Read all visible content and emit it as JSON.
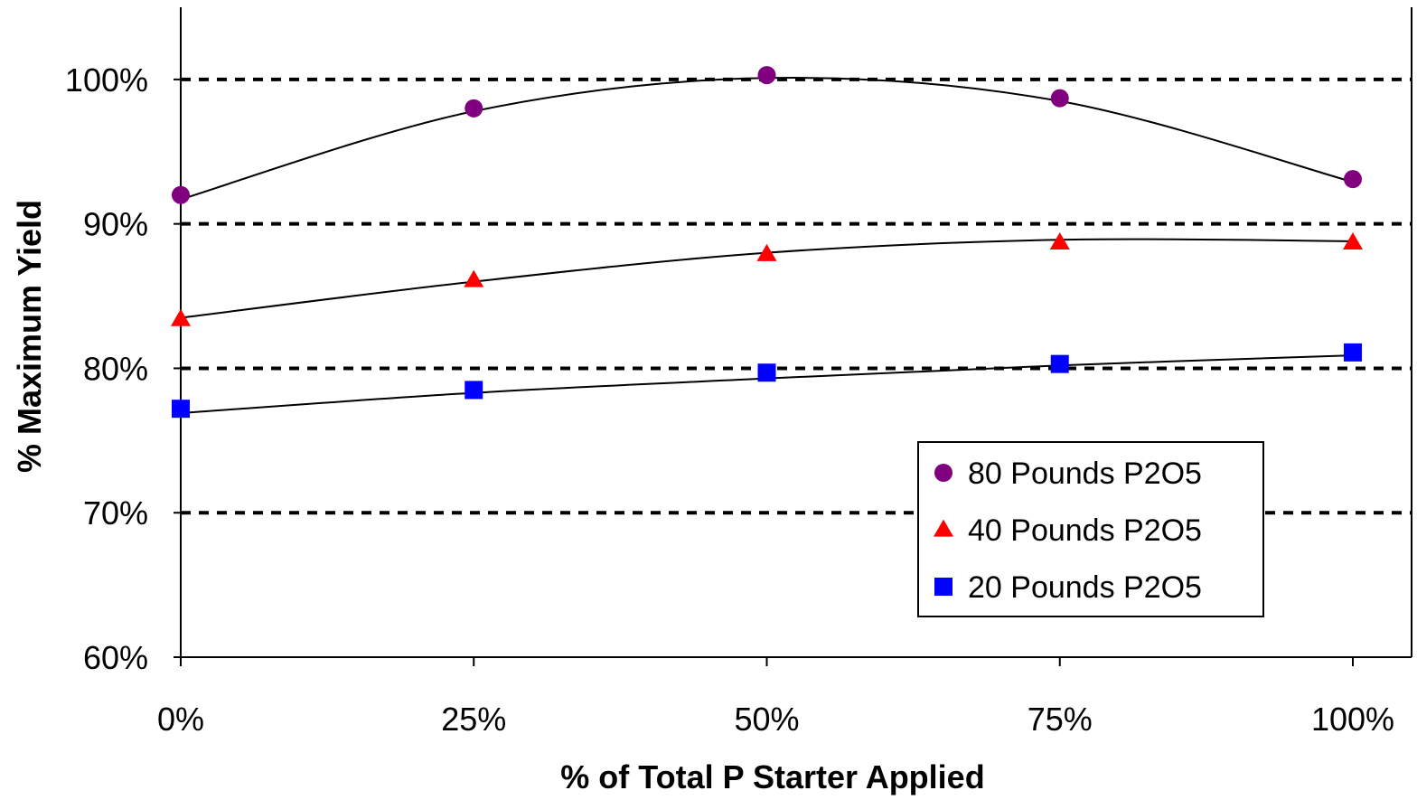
{
  "chart_data": {
    "type": "scatter",
    "title": "",
    "xlabel": "% of Total P Starter Applied",
    "ylabel": "% Maximum Yield",
    "x": [
      0,
      25,
      50,
      75,
      100
    ],
    "x_tick_labels": [
      "0%",
      "25%",
      "50%",
      "75%",
      "100%"
    ],
    "y_tick_values": [
      60,
      70,
      80,
      90,
      100
    ],
    "y_tick_labels": [
      "60%",
      "70%",
      "80%",
      "90%",
      "100%"
    ],
    "xlim": [
      0,
      105
    ],
    "ylim": [
      60,
      105
    ],
    "grid": "horizontal dashed at 70%, 80%, 90%, 100%",
    "grid_values": [
      70,
      80,
      90,
      100
    ],
    "legend_position": "bottom-right",
    "series": [
      {
        "name": "80 Pounds P2O5",
        "marker": "circle",
        "color": "#800080",
        "values": [
          92.0,
          98.0,
          100.3,
          98.7,
          93.1
        ],
        "trendline": [
          91.7,
          97.8,
          100.1,
          98.5,
          92.9
        ]
      },
      {
        "name": "40 Pounds P2O5",
        "marker": "triangle",
        "color": "#ff0000",
        "values": [
          83.4,
          86.1,
          87.9,
          88.7,
          88.7
        ],
        "trendline": [
          83.5,
          86.0,
          88.0,
          88.9,
          88.8
        ]
      },
      {
        "name": "20 Pounds P2O5",
        "marker": "square",
        "color": "#0000ff",
        "values": [
          77.2,
          78.5,
          79.7,
          80.3,
          81.1
        ],
        "trendline": [
          76.9,
          78.3,
          79.3,
          80.2,
          80.9
        ]
      }
    ]
  }
}
